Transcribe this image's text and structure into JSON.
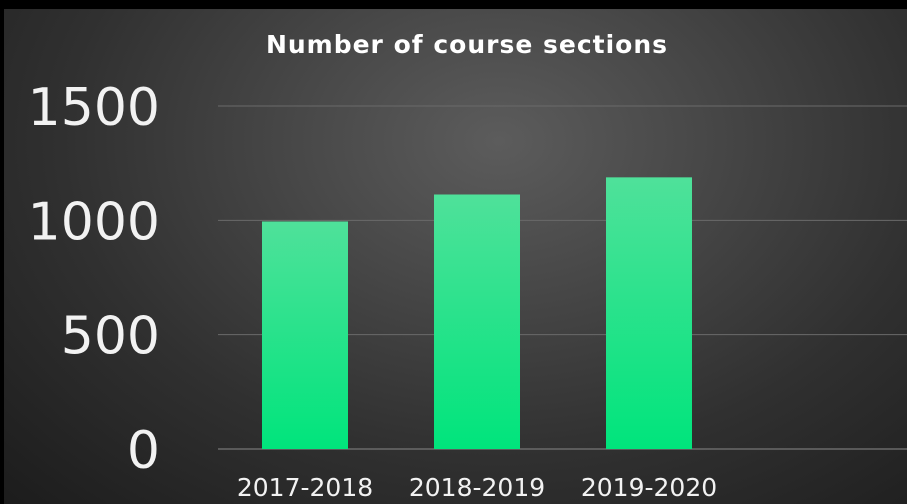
{
  "chart_data": {
    "type": "bar",
    "title": "Number of course sections",
    "xlabel": "",
    "ylabel": "",
    "categories": [
      "2017-2018",
      "2018-2019",
      "2019-2020"
    ],
    "values": [
      995,
      1113,
      1188
    ],
    "ylim": [
      0,
      1500
    ],
    "yticks": [
      "0",
      "500",
      "1000",
      "1500"
    ],
    "grid": true,
    "legend": "none",
    "colors": {
      "bar_top": "#4fe19a",
      "bar_bottom": "#00e47c",
      "gridline": "#6a6a6a",
      "text": "#f2f2f2"
    }
  }
}
